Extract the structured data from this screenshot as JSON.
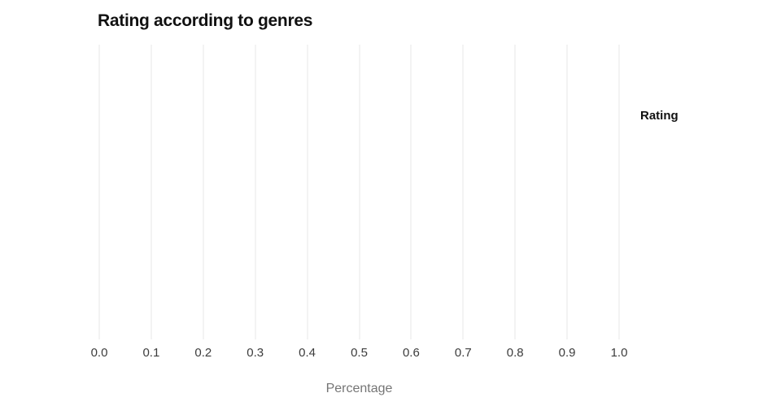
{
  "chart_data": {
    "type": "bar",
    "title": "Rating according to genres",
    "xlabel": "Percentage",
    "ylabel": "",
    "legend_title": "Rating",
    "x_ticks": [
      "0.0",
      "0.1",
      "0.2",
      "0.3",
      "0.4",
      "0.5",
      "0.6",
      "0.7",
      "0.8",
      "0.9",
      "1.0"
    ],
    "xlim": [
      0.0,
      1.0
    ],
    "categories": [],
    "series": [],
    "grid": "vertical-only",
    "legend_position": "right"
  },
  "colors": {
    "background": "#ffffff",
    "gridline": "#e7e7e7",
    "title_text": "#111111",
    "tick_text": "#3c3c3c",
    "axis_label_text": "#757575",
    "legend_text": "#111111"
  }
}
